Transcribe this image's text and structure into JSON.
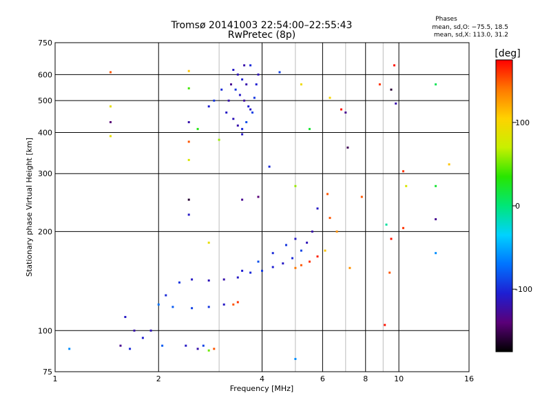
{
  "chart_data": {
    "type": "scatter",
    "title": "Tromsø 20141003 22:54:00–22:55:43",
    "subtitle": "RwPretec (8p)",
    "stats": {
      "heading": "Phases",
      "line1": "mean, sd,O: −75.5, 18.5",
      "line2": "mean, sd,X: 113.0, 31.2"
    },
    "xlabel": "Frequency [MHz]",
    "ylabel": "Stationary phase Virtual Height [km]",
    "x_scale": "log",
    "y_scale": "log",
    "xlim": [
      1,
      16
    ],
    "ylim": [
      75,
      750
    ],
    "x_ticks": [
      1,
      2,
      4,
      6,
      8,
      10,
      16
    ],
    "x_tick_labels": [
      "1",
      "2",
      "4",
      "6",
      "8",
      "10",
      "16"
    ],
    "x_minor_grid": [
      3,
      5,
      7,
      9
    ],
    "y_ticks": [
      75,
      100,
      200,
      300,
      400,
      500,
      600,
      750
    ],
    "y_tick_labels": [
      "75",
      "100",
      "200",
      "300",
      "400",
      "500",
      "600",
      "750"
    ],
    "grid": true,
    "colorbar": {
      "label": "[deg]",
      "min": -175,
      "max": 175,
      "ticks": [
        -100,
        0,
        100
      ],
      "tick_labels": [
        "-100",
        "0",
        "100"
      ],
      "colormap": [
        "#000000",
        "#5a0078",
        "#1e1ed2",
        "#0073ff",
        "#00d2ff",
        "#00e678",
        "#28e600",
        "#c8f000",
        "#ffd200",
        "#ff7800",
        "#ff0000"
      ]
    },
    "series": [
      {
        "x": 3.3,
        "y": 620,
        "phase": -110
      },
      {
        "x": 3.4,
        "y": 600,
        "phase": -115
      },
      {
        "x": 3.5,
        "y": 580,
        "phase": -105
      },
      {
        "x": 3.6,
        "y": 560,
        "phase": -120
      },
      {
        "x": 3.7,
        "y": 640,
        "phase": -100
      },
      {
        "x": 3.35,
        "y": 540,
        "phase": -95
      },
      {
        "x": 3.45,
        "y": 520,
        "phase": -110
      },
      {
        "x": 3.55,
        "y": 500,
        "phase": -125
      },
      {
        "x": 3.65,
        "y": 480,
        "phase": -105
      },
      {
        "x": 3.75,
        "y": 460,
        "phase": -90
      },
      {
        "x": 3.3,
        "y": 440,
        "phase": -115
      },
      {
        "x": 3.4,
        "y": 420,
        "phase": -120
      },
      {
        "x": 3.5,
        "y": 410,
        "phase": -100
      },
      {
        "x": 3.6,
        "y": 430,
        "phase": -85
      },
      {
        "x": 3.7,
        "y": 470,
        "phase": -110
      },
      {
        "x": 3.8,
        "y": 510,
        "phase": -95
      },
      {
        "x": 3.85,
        "y": 560,
        "phase": -105
      },
      {
        "x": 3.9,
        "y": 600,
        "phase": -115
      },
      {
        "x": 3.25,
        "y": 560,
        "phase": -130
      },
      {
        "x": 3.2,
        "y": 500,
        "phase": -120
      },
      {
        "x": 3.15,
        "y": 460,
        "phase": -110
      },
      {
        "x": 3.05,
        "y": 540,
        "phase": -100
      },
      {
        "x": 2.9,
        "y": 500,
        "phase": -95
      },
      {
        "x": 2.8,
        "y": 480,
        "phase": -105
      },
      {
        "x": 3.5,
        "y": 395,
        "phase": -110
      },
      {
        "x": 3.55,
        "y": 640,
        "phase": -120
      },
      {
        "x": 4.5,
        "y": 610,
        "phase": -90
      },
      {
        "x": 5.2,
        "y": 560,
        "phase": 95
      },
      {
        "x": 1.45,
        "y": 610,
        "phase": 150
      },
      {
        "x": 1.45,
        "y": 480,
        "phase": 90
      },
      {
        "x": 1.45,
        "y": 430,
        "phase": -140
      },
      {
        "x": 1.45,
        "y": 390,
        "phase": 90
      },
      {
        "x": 2.45,
        "y": 615,
        "phase": 110
      },
      {
        "x": 2.45,
        "y": 545,
        "phase": 40
      },
      {
        "x": 2.45,
        "y": 430,
        "phase": -120
      },
      {
        "x": 2.45,
        "y": 375,
        "phase": 150
      },
      {
        "x": 2.45,
        "y": 330,
        "phase": 80
      },
      {
        "x": 2.6,
        "y": 410,
        "phase": 30
      },
      {
        "x": 3.0,
        "y": 380,
        "phase": 60
      },
      {
        "x": 4.2,
        "y": 315,
        "phase": -100
      },
      {
        "x": 5.5,
        "y": 410,
        "phase": 20
      },
      {
        "x": 6.3,
        "y": 510,
        "phase": 100
      },
      {
        "x": 6.8,
        "y": 470,
        "phase": 170
      },
      {
        "x": 7.0,
        "y": 460,
        "phase": -130
      },
      {
        "x": 7.1,
        "y": 360,
        "phase": -150
      },
      {
        "x": 8.8,
        "y": 560,
        "phase": 160
      },
      {
        "x": 9.7,
        "y": 640,
        "phase": 170
      },
      {
        "x": 9.5,
        "y": 540,
        "phase": -160
      },
      {
        "x": 9.8,
        "y": 490,
        "phase": -120
      },
      {
        "x": 12.8,
        "y": 560,
        "phase": 10
      },
      {
        "x": 14.0,
        "y": 320,
        "phase": 110
      },
      {
        "x": 12.8,
        "y": 275,
        "phase": 20
      },
      {
        "x": 10.3,
        "y": 305,
        "phase": 160
      },
      {
        "x": 10.5,
        "y": 275,
        "phase": 80
      },
      {
        "x": 3.5,
        "y": 250,
        "phase": -130
      },
      {
        "x": 3.9,
        "y": 255,
        "phase": -140
      },
      {
        "x": 5.0,
        "y": 275,
        "phase": 60
      },
      {
        "x": 6.2,
        "y": 260,
        "phase": 150
      },
      {
        "x": 7.8,
        "y": 255,
        "phase": 150
      },
      {
        "x": 2.45,
        "y": 250,
        "phase": -160
      },
      {
        "x": 2.45,
        "y": 225,
        "phase": -110
      },
      {
        "x": 2.1,
        "y": 128,
        "phase": -100
      },
      {
        "x": 2.3,
        "y": 140,
        "phase": -95
      },
      {
        "x": 2.5,
        "y": 143,
        "phase": -110
      },
      {
        "x": 2.8,
        "y": 142,
        "phase": -115
      },
      {
        "x": 3.1,
        "y": 143,
        "phase": -120
      },
      {
        "x": 3.4,
        "y": 145,
        "phase": -110
      },
      {
        "x": 3.7,
        "y": 150,
        "phase": -100
      },
      {
        "x": 4.0,
        "y": 152,
        "phase": -95
      },
      {
        "x": 4.3,
        "y": 156,
        "phase": -105
      },
      {
        "x": 4.6,
        "y": 160,
        "phase": -110
      },
      {
        "x": 4.9,
        "y": 166,
        "phase": -100
      },
      {
        "x": 5.2,
        "y": 175,
        "phase": -90
      },
      {
        "x": 5.4,
        "y": 185,
        "phase": -115
      },
      {
        "x": 5.6,
        "y": 200,
        "phase": -120
      },
      {
        "x": 5.8,
        "y": 235,
        "phase": -110
      },
      {
        "x": 3.5,
        "y": 152,
        "phase": -105
      },
      {
        "x": 3.9,
        "y": 162,
        "phase": -85
      },
      {
        "x": 4.3,
        "y": 172,
        "phase": -100
      },
      {
        "x": 4.7,
        "y": 182,
        "phase": -95
      },
      {
        "x": 5.0,
        "y": 190,
        "phase": -110
      },
      {
        "x": 5.2,
        "y": 158,
        "phase": 150
      },
      {
        "x": 5.5,
        "y": 162,
        "phase": 160
      },
      {
        "x": 5.8,
        "y": 168,
        "phase": 165
      },
      {
        "x": 5.0,
        "y": 155,
        "phase": 140
      },
      {
        "x": 2.0,
        "y": 120,
        "phase": -70
      },
      {
        "x": 2.2,
        "y": 118,
        "phase": -80
      },
      {
        "x": 2.5,
        "y": 117,
        "phase": -90
      },
      {
        "x": 2.8,
        "y": 118,
        "phase": -95
      },
      {
        "x": 3.1,
        "y": 120,
        "phase": -110
      },
      {
        "x": 3.3,
        "y": 120,
        "phase": 150
      },
      {
        "x": 3.4,
        "y": 122,
        "phase": 160
      },
      {
        "x": 1.6,
        "y": 110,
        "phase": -110
      },
      {
        "x": 1.7,
        "y": 100,
        "phase": -120
      },
      {
        "x": 1.8,
        "y": 95,
        "phase": -105
      },
      {
        "x": 1.9,
        "y": 100,
        "phase": -115
      },
      {
        "x": 2.05,
        "y": 90,
        "phase": -80
      },
      {
        "x": 1.55,
        "y": 90,
        "phase": -130
      },
      {
        "x": 1.65,
        "y": 88,
        "phase": -100
      },
      {
        "x": 2.4,
        "y": 90,
        "phase": -110
      },
      {
        "x": 2.6,
        "y": 88,
        "phase": -120
      },
      {
        "x": 2.9,
        "y": 88,
        "phase": 150
      },
      {
        "x": 2.8,
        "y": 87,
        "phase": 50
      },
      {
        "x": 2.7,
        "y": 90,
        "phase": -90
      },
      {
        "x": 1.1,
        "y": 88,
        "phase": -60
      },
      {
        "x": 5.0,
        "y": 82,
        "phase": -60
      },
      {
        "x": 9.1,
        "y": 104,
        "phase": 170
      },
      {
        "x": 9.4,
        "y": 150,
        "phase": 150
      },
      {
        "x": 9.5,
        "y": 190,
        "phase": 170
      },
      {
        "x": 10.3,
        "y": 205,
        "phase": 160
      },
      {
        "x": 9.2,
        "y": 210,
        "phase": -10
      },
      {
        "x": 12.8,
        "y": 218,
        "phase": -130
      },
      {
        "x": 12.8,
        "y": 172,
        "phase": -60
      },
      {
        "x": 6.3,
        "y": 220,
        "phase": 150
      },
      {
        "x": 6.6,
        "y": 200,
        "phase": 130
      },
      {
        "x": 7.2,
        "y": 155,
        "phase": 130
      },
      {
        "x": 6.1,
        "y": 175,
        "phase": 110
      },
      {
        "x": 2.8,
        "y": 185,
        "phase": 90
      }
    ]
  }
}
